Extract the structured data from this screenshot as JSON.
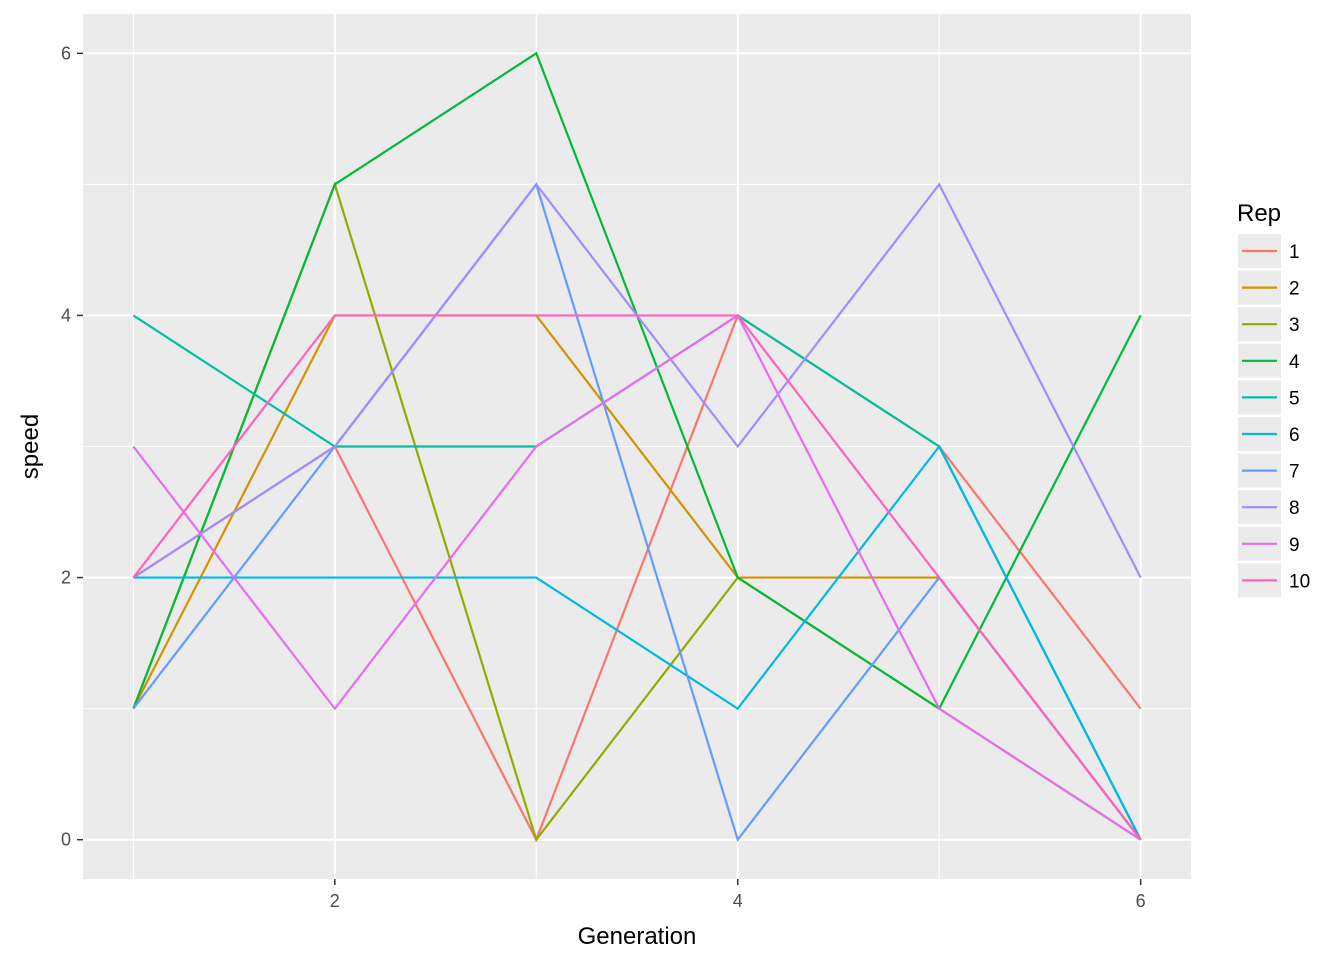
{
  "chart_data": {
    "type": "line",
    "xlabel": "Generation",
    "ylabel": "speed",
    "x": [
      1,
      2,
      3,
      4,
      5,
      6
    ],
    "xlim": [
      0.75,
      6.25
    ],
    "ylim": [
      -0.3,
      6.3
    ],
    "xticks": [
      2,
      4,
      6
    ],
    "yticks": [
      0,
      2,
      4,
      6
    ],
    "grid": true,
    "legend": {
      "title": "Rep",
      "position": "right"
    },
    "series": [
      {
        "name": "1",
        "color": "#F8766D",
        "values": [
          2,
          3,
          0,
          4,
          3,
          1
        ]
      },
      {
        "name": "2",
        "color": "#D39200",
        "values": [
          1,
          4,
          4,
          2,
          2,
          0
        ]
      },
      {
        "name": "3",
        "color": "#93AA00",
        "values": [
          1,
          5,
          0,
          2,
          1,
          0
        ]
      },
      {
        "name": "4",
        "color": "#00BA38",
        "values": [
          1,
          5,
          6,
          2,
          1,
          4
        ]
      },
      {
        "name": "5",
        "color": "#00C19F",
        "values": [
          4,
          3,
          3,
          4,
          3,
          0
        ]
      },
      {
        "name": "6",
        "color": "#00B9E3",
        "values": [
          2,
          2,
          2,
          1,
          3,
          0
        ]
      },
      {
        "name": "7",
        "color": "#619CFF",
        "values": [
          1,
          3,
          5,
          0,
          2,
          0
        ]
      },
      {
        "name": "8",
        "color": "#9F8CFF",
        "values": [
          2,
          3,
          5,
          3,
          5,
          2
        ]
      },
      {
        "name": "9",
        "color": "#E76BF3",
        "values": [
          3,
          1,
          3,
          4,
          1,
          0
        ]
      },
      {
        "name": "10",
        "color": "#FF62BC",
        "values": [
          2,
          4,
          4,
          4,
          2,
          0
        ]
      }
    ]
  }
}
